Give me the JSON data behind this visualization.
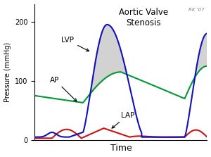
{
  "title": "Aortic Valve\nStenosis",
  "xlabel": "Time",
  "ylabel": "Pressure (mmHg)",
  "ylim": [
    0,
    230
  ],
  "xlim": [
    0,
    1.0
  ],
  "watermark": "RK '07",
  "lvp_color": "#1111bb",
  "ap_color": "#009933",
  "lap_color": "#cc1111",
  "fill_color": "#c0c0c0",
  "fill_alpha": 0.7
}
